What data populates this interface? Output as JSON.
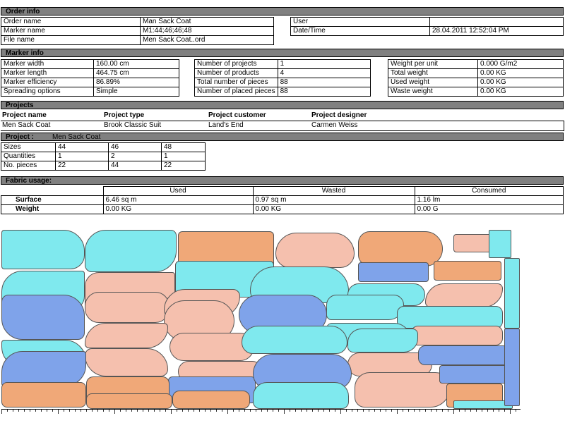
{
  "order_info": {
    "title": "Order info",
    "rows": [
      {
        "label": "Order name",
        "value": "Man Sack Coat"
      },
      {
        "label": "Marker name",
        "value": "M1:44;46;46;48"
      },
      {
        "label": "File name",
        "value": "Men Sack Coat..ord"
      }
    ],
    "right_rows": [
      {
        "label": "User",
        "value": ""
      },
      {
        "label": "Date/Time",
        "value": "28.04.2011 12:52:04 PM"
      }
    ]
  },
  "marker_info": {
    "title": "Marker info",
    "col1": [
      {
        "label": "Marker width",
        "value": "160.00 cm"
      },
      {
        "label": "Marker length",
        "value": "464.75 cm"
      },
      {
        "label": "Marker efficiency",
        "value": "86.89%"
      },
      {
        "label": "Spreading options",
        "value": "Simple"
      }
    ],
    "col2": [
      {
        "label": "Number of projects",
        "value": "1"
      },
      {
        "label": "Number of products",
        "value": "4"
      },
      {
        "label": "Total number of pieces",
        "value": "88"
      },
      {
        "label": "Number of placed pieces",
        "value": "88"
      }
    ],
    "col3": [
      {
        "label": "Weight per unit",
        "value": "0.000 G/m2"
      },
      {
        "label": "Total weight",
        "value": "0.00 KG"
      },
      {
        "label": "Used weight",
        "value": "0.00 KG"
      },
      {
        "label": "Waste weight",
        "value": "0.00 KG"
      }
    ]
  },
  "projects": {
    "title": "Projects",
    "headers": [
      "Project name",
      "Project type",
      "Project customer",
      "Project designer"
    ],
    "row": [
      "Men Sack Coat",
      "Brook Classic Suit",
      "Land's End",
      "Carmen Weiss"
    ]
  },
  "project": {
    "label": "Project :",
    "name": "Men Sack Coat",
    "rows": [
      {
        "label": "Sizes",
        "values": [
          "44",
          "46",
          "48"
        ]
      },
      {
        "label": "Quantities",
        "values": [
          "1",
          "2",
          "1"
        ]
      },
      {
        "label": "No. pieces",
        "values": [
          "22",
          "44",
          "22"
        ]
      }
    ]
  },
  "fabric_usage": {
    "title": "Fabric usage:",
    "headers": [
      "Used",
      "Wasted",
      "Consumed"
    ],
    "rows": [
      {
        "label": "Surface",
        "values": [
          "6.46 sq m",
          "0.97 sq m",
          "1.16 lm"
        ]
      },
      {
        "label": "Weight",
        "values": [
          "0.00 KG",
          "0.00 KG",
          "0.00 G"
        ]
      }
    ]
  },
  "marker_colors": {
    "cyan": "#7fe9ee",
    "orange": "#f0a878",
    "salmon": "#f5c0ae",
    "blue": "#7fa3ea"
  }
}
